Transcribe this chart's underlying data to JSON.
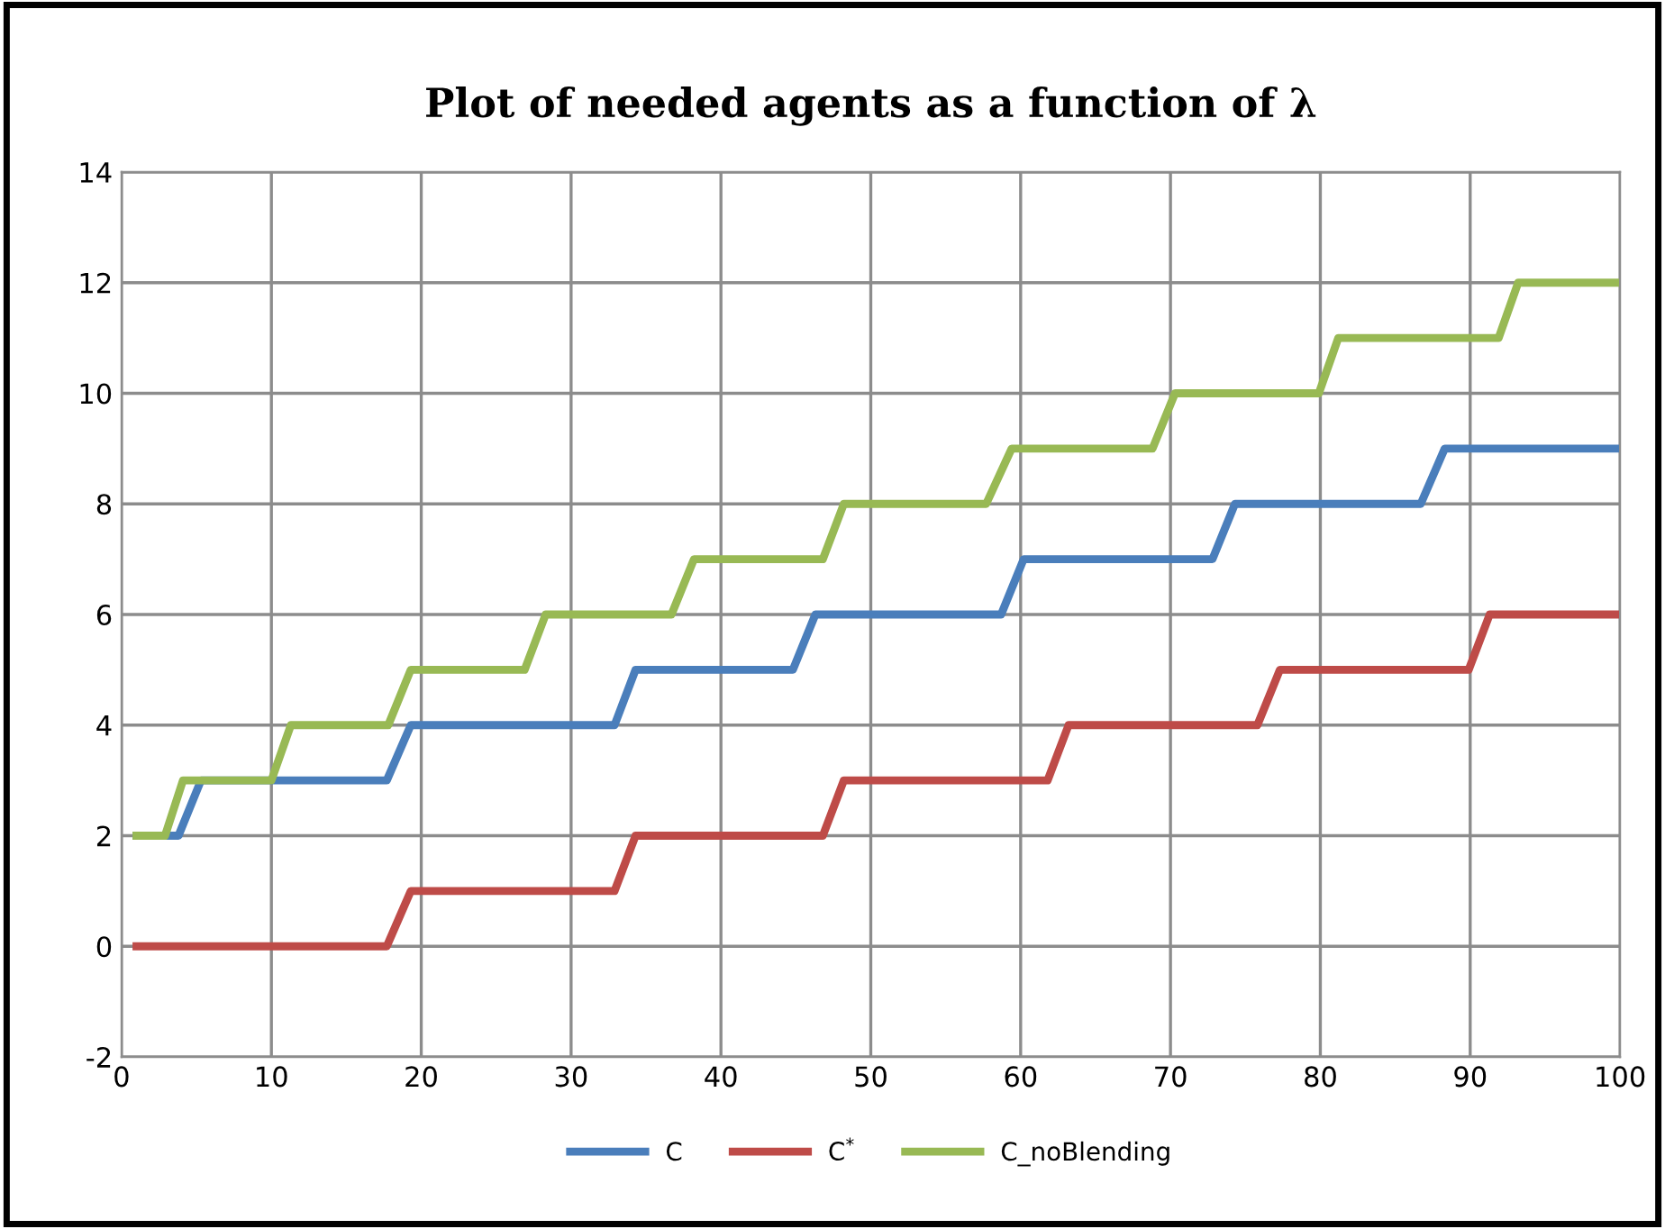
{
  "chart_data": {
    "type": "line",
    "title": "Plot of needed agents as a function of λ",
    "xlim": [
      0,
      100
    ],
    "xticks": [
      0,
      10,
      20,
      30,
      40,
      50,
      60,
      70,
      80,
      90,
      100
    ],
    "ylim": [
      -2,
      14
    ],
    "yticks": [
      -2,
      0,
      2,
      4,
      6,
      8,
      10,
      12,
      14
    ],
    "grid": true,
    "legend": "bottom",
    "marker": "none",
    "line_style": "solid",
    "series": [
      {
        "name": "C",
        "color": "#4a7ebb",
        "x": [
          1,
          3.8,
          5.3,
          17.7,
          19.3,
          32.9,
          34.3,
          44.8,
          46.3,
          58.7,
          60.2,
          72.8,
          74.3,
          86.7,
          88.3,
          100
        ],
        "values": [
          2,
          2,
          3,
          3,
          4,
          4,
          5,
          5,
          6,
          6,
          7,
          7,
          8,
          8,
          9,
          9
        ]
      },
      {
        "name": "C$^{*}$",
        "color": "#be4b48",
        "x": [
          1,
          17.7,
          19.3,
          32.9,
          34.3,
          46.8,
          48.2,
          61.8,
          63.2,
          75.8,
          77.3,
          89.9,
          91.3,
          100
        ],
        "values": [
          0,
          0,
          1,
          1,
          2,
          2,
          3,
          3,
          4,
          4,
          5,
          5,
          6,
          6
        ]
      },
      {
        "name": "C_noBlending",
        "color": "#98b954",
        "x": [
          1,
          2.9,
          4.1,
          10.0,
          11.3,
          17.8,
          19.3,
          26.9,
          28.3,
          36.7,
          38.2,
          46.8,
          48.2,
          57.7,
          59.4,
          68.8,
          70.3,
          79.9,
          81.2,
          91.9,
          93.2,
          100
        ],
        "values": [
          2,
          2,
          3,
          3,
          4,
          4,
          5,
          5,
          6,
          6,
          7,
          7,
          8,
          8,
          9,
          9,
          10,
          10,
          11,
          11,
          12,
          12
        ]
      }
    ]
  }
}
